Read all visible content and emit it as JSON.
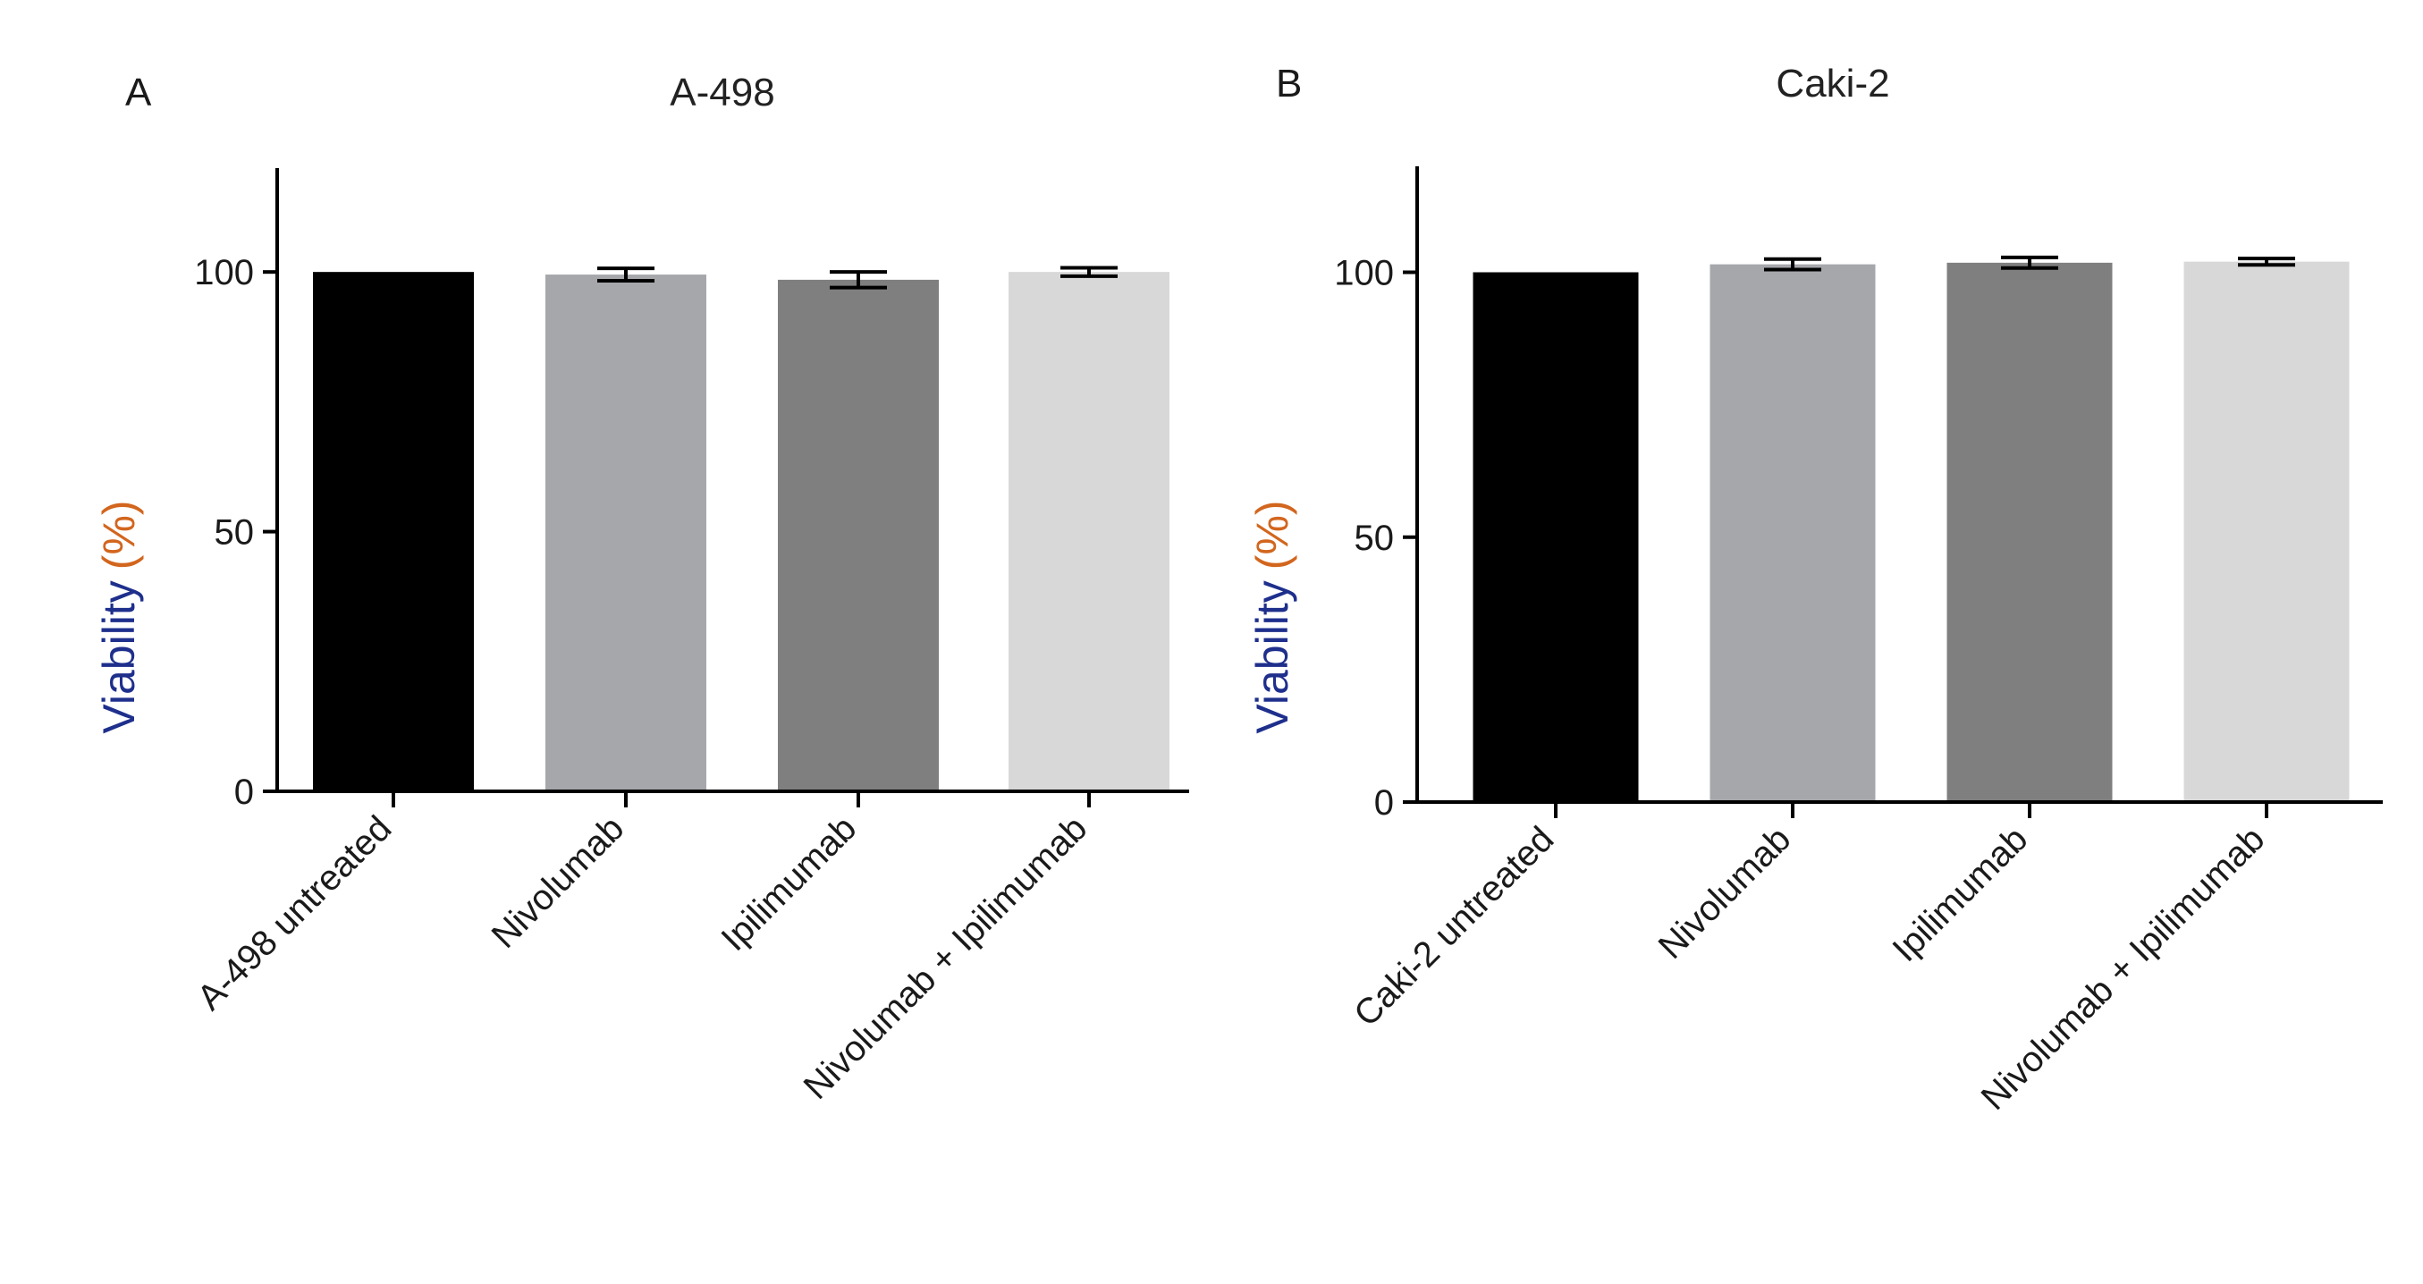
{
  "chart_data": [
    {
      "type": "bar",
      "panel_label": "A",
      "title": "A-498",
      "ylabel_main": "Viability",
      "ylabel_unit": "(%)",
      "xlabel": "",
      "ylim": [
        0,
        120
      ],
      "yticks": [
        "0",
        "50",
        "100"
      ],
      "yticks_values": [
        0,
        50,
        100
      ],
      "categories": [
        "A-498 untreated",
        "Nivolumab",
        "Ipilimumab",
        "Nivolumab + Ipilimumab"
      ],
      "values": [
        100,
        99.5,
        98.5,
        100
      ],
      "errors": [
        0,
        1.2,
        1.5,
        0.8
      ],
      "bar_colors": [
        "#000000",
        "#a6a7ab",
        "#7f7f7f",
        "#d8d8d8"
      ],
      "legend": "none",
      "grid": false
    },
    {
      "type": "bar",
      "panel_label": "B",
      "title": "Caki-2",
      "ylabel_main": "Viability",
      "ylabel_unit": "(%)",
      "xlabel": "",
      "ylim": [
        0,
        120
      ],
      "yticks": [
        "0",
        "50",
        "100"
      ],
      "yticks_values": [
        0,
        50,
        100
      ],
      "categories": [
        "Caki-2 untreated",
        "Nivolumab",
        "Ipilimumab",
        "Nivolumab + Ipilimumab"
      ],
      "values": [
        100,
        101.5,
        101.8,
        102
      ],
      "errors": [
        0,
        1.0,
        1.0,
        0.6
      ],
      "bar_colors": [
        "#000000",
        "#a6a7ab",
        "#7f7f7f",
        "#d8d8d8"
      ],
      "legend": "none",
      "grid": false
    }
  ]
}
